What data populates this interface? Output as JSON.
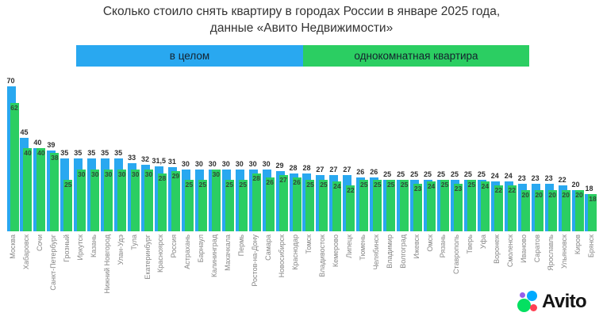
{
  "title": {
    "line1": "Сколько стоило снять квартиру в городах России в январе 2025 года,",
    "line2": "данные «Авито Недвижимости»"
  },
  "legend": {
    "series1": "в целом",
    "series2": "однокомнатная квартира"
  },
  "colors": {
    "blue": "#29a8f0",
    "green": "#2bce62",
    "title_text": "#333333",
    "legend_text": "#14222e",
    "value_text": "#2e2e2e",
    "green_value_text": "#2f4a36",
    "axis_label_text": "#878787"
  },
  "logo": {
    "text": "Avito",
    "colors": {
      "green": "#04e061",
      "blue": "#00aaff",
      "red": "#ff4053",
      "purple": "#965eeb"
    }
  },
  "chart_data": {
    "type": "bar",
    "title": "Сколько стоило снять квартиру в городах России в январе 2025 года, данные «Авито Недвижимости»",
    "xlabel": "",
    "ylabel": "",
    "ylim": [
      0,
      75
    ],
    "grid": false,
    "legend_position": "top",
    "value_labels": true,
    "decimal_separator": ",",
    "categories": [
      "Москва",
      "Хабаровск",
      "Сочи",
      "Санкт-Петербург",
      "Грозный",
      "Иркутск",
      "Казань",
      "Нижний Новгород",
      "Улан-Удэ",
      "Тула",
      "Екатеринбург",
      "Красноярск",
      "Россия",
      "Астрахань",
      "Барнаул",
      "Калининград",
      "Махачкала",
      "Пермь",
      "Ростов-на-Дону",
      "Самара",
      "Новосибирск",
      "Краснодар",
      "Томск",
      "Владивосток",
      "Кемерово",
      "Липецк",
      "Тюмень",
      "Челябинск",
      "Владимир",
      "Волгоград",
      "Ижевск",
      "Омск",
      "Рязань",
      "Ставрополь",
      "Тверь",
      "Уфа",
      "Воронеж",
      "Смоленск",
      "Иваново",
      "Саратов",
      "Ярославль",
      "Ульяновск",
      "Киров",
      "Брянск"
    ],
    "series": [
      {
        "name": "в целом",
        "color": "#29a8f0",
        "values": [
          70,
          45,
          40,
          39,
          35,
          35,
          35,
          35,
          35,
          33,
          32,
          31.5,
          31,
          30,
          30,
          30,
          30,
          30,
          30,
          30,
          29,
          28,
          28,
          27,
          27,
          27,
          26,
          26,
          25,
          25,
          25,
          25,
          25,
          25,
          25,
          25,
          24,
          24,
          23,
          23,
          23,
          22,
          20,
          18
        ]
      },
      {
        "name": "однокомнатная квартира",
        "color": "#2bce62",
        "values": [
          62,
          40,
          40,
          38,
          25,
          30,
          30,
          30,
          30,
          30,
          30,
          28,
          29,
          25,
          25,
          30,
          25,
          25,
          28,
          26,
          27,
          26,
          25,
          25,
          24,
          22,
          25,
          25,
          25,
          25,
          23,
          24,
          25,
          23,
          25,
          24,
          22,
          22,
          20,
          20,
          20,
          20,
          20,
          18
        ]
      }
    ]
  }
}
